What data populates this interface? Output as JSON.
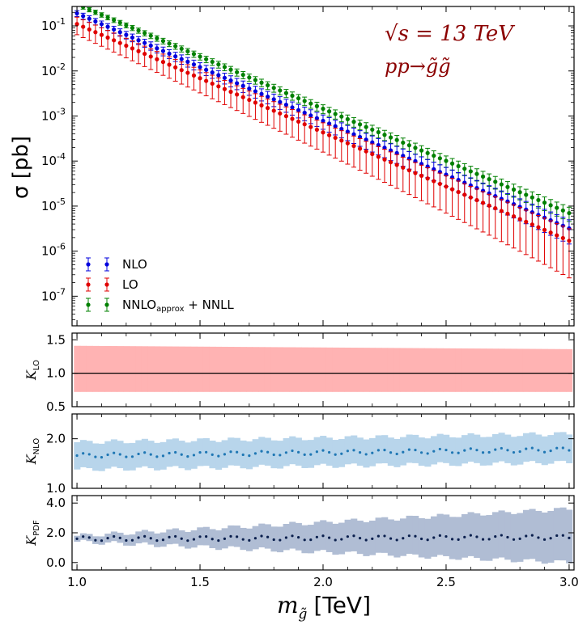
{
  "chart_data": {
    "type": "scatter",
    "xlabel_prefix": "m",
    "xlabel_sub": "g̃",
    "xlabel_unit": "[TeV]",
    "xlim": [
      0.98,
      3.02
    ],
    "x_ticks": [
      1.0,
      1.5,
      2.0,
      2.5,
      3.0
    ],
    "x_tick_labels": [
      "1.0",
      "1.5",
      "2.0",
      "2.5",
      "3.0"
    ],
    "x_start": 1.0,
    "x_step": 0.025,
    "n_points": 81,
    "annotation_energy": "√s = 13 TeV",
    "annotation_process": "pp→g̃g̃",
    "annotation_color": "#8b0000",
    "main_panel": {
      "ylabel": "σ [pb]",
      "yscale": "log",
      "ylim": [
        2.2e-08,
        0.27
      ],
      "y_ticks": [
        1e-07,
        1e-06,
        1e-05,
        0.0001,
        0.001,
        0.01,
        0.1
      ],
      "y_tick_base": "10",
      "y_tick_exps": [
        "-7",
        "-6",
        "-5",
        "-4",
        "-3",
        "-2",
        "-1"
      ],
      "series": [
        {
          "name": "NNLO_approx+NNLL",
          "legend_main": "NNLO",
          "legend_sub": "approx",
          "legend_tail": " + NNLL",
          "color": "#008000",
          "y_at_start": 0.3,
          "y_at_end": 7e-06,
          "rel_err_start": 0.1,
          "rel_err_end": 0.35
        },
        {
          "name": "NLO",
          "legend_main": "NLO",
          "legend_sub": "",
          "legend_tail": "",
          "color": "#0000dd",
          "y_at_start": 0.19,
          "y_at_end": 3.2e-06,
          "rel_err_start": 0.15,
          "rel_err_end": 0.55
        },
        {
          "name": "LO",
          "legend_main": "LO",
          "legend_sub": "",
          "legend_tail": "",
          "color": "#e00000",
          "y_at_start": 0.11,
          "y_at_end": 1.7e-06,
          "rel_err_start": 0.42,
          "rel_err_end": 0.85
        }
      ],
      "legend_order": [
        "NLO",
        "LO",
        "NNLO_approx+NNLL"
      ],
      "legend_position": "lower-left"
    },
    "ratio_panels": [
      {
        "name": "K_LO",
        "ylabel_main": "K",
        "ylabel_sub": "LO",
        "ylim": [
          0.5,
          1.6
        ],
        "y_ticks": [
          0.5,
          1.0,
          1.5
        ],
        "y_tick_labels": [
          "0.5",
          "1.0",
          "1.5"
        ],
        "center_start": 1.0,
        "center_end": 1.0,
        "band_low_start": 0.72,
        "band_low_end": 0.72,
        "band_high_start": 1.41,
        "band_high_end": 1.36,
        "band_color": "#ffb3b3",
        "center_style": "line",
        "center_color": "#000000"
      },
      {
        "name": "K_NLO",
        "ylabel_main": "K",
        "ylabel_sub": "NLO",
        "ylim": [
          1.0,
          2.5
        ],
        "y_ticks": [
          1.0,
          2.0
        ],
        "y_tick_labels": [
          "1.0",
          "2.0"
        ],
        "center_start": 1.66,
        "center_end": 1.78,
        "band_low_start": 1.38,
        "band_low_end": 1.52,
        "band_high_start": 1.93,
        "band_high_end": 2.1,
        "band_color": "#b8d5eb",
        "center_style": "dots",
        "center_color": "#1f77b4"
      },
      {
        "name": "K_PDF",
        "ylabel_main": "K",
        "ylabel_sub": "PDF",
        "ylim": [
          -0.5,
          4.5
        ],
        "y_ticks": [
          0.0,
          2.0,
          4.0
        ],
        "y_tick_labels": [
          "0.0",
          "2.0",
          "4.0"
        ],
        "center_start": 1.6,
        "center_end": 1.7,
        "band_low_start": 1.4,
        "band_low_end": 0.0,
        "band_high_start": 1.8,
        "band_high_end": 3.6,
        "band_color": "#b0bdd4",
        "center_style": "dots",
        "center_color": "#0a1f4d"
      }
    ]
  }
}
